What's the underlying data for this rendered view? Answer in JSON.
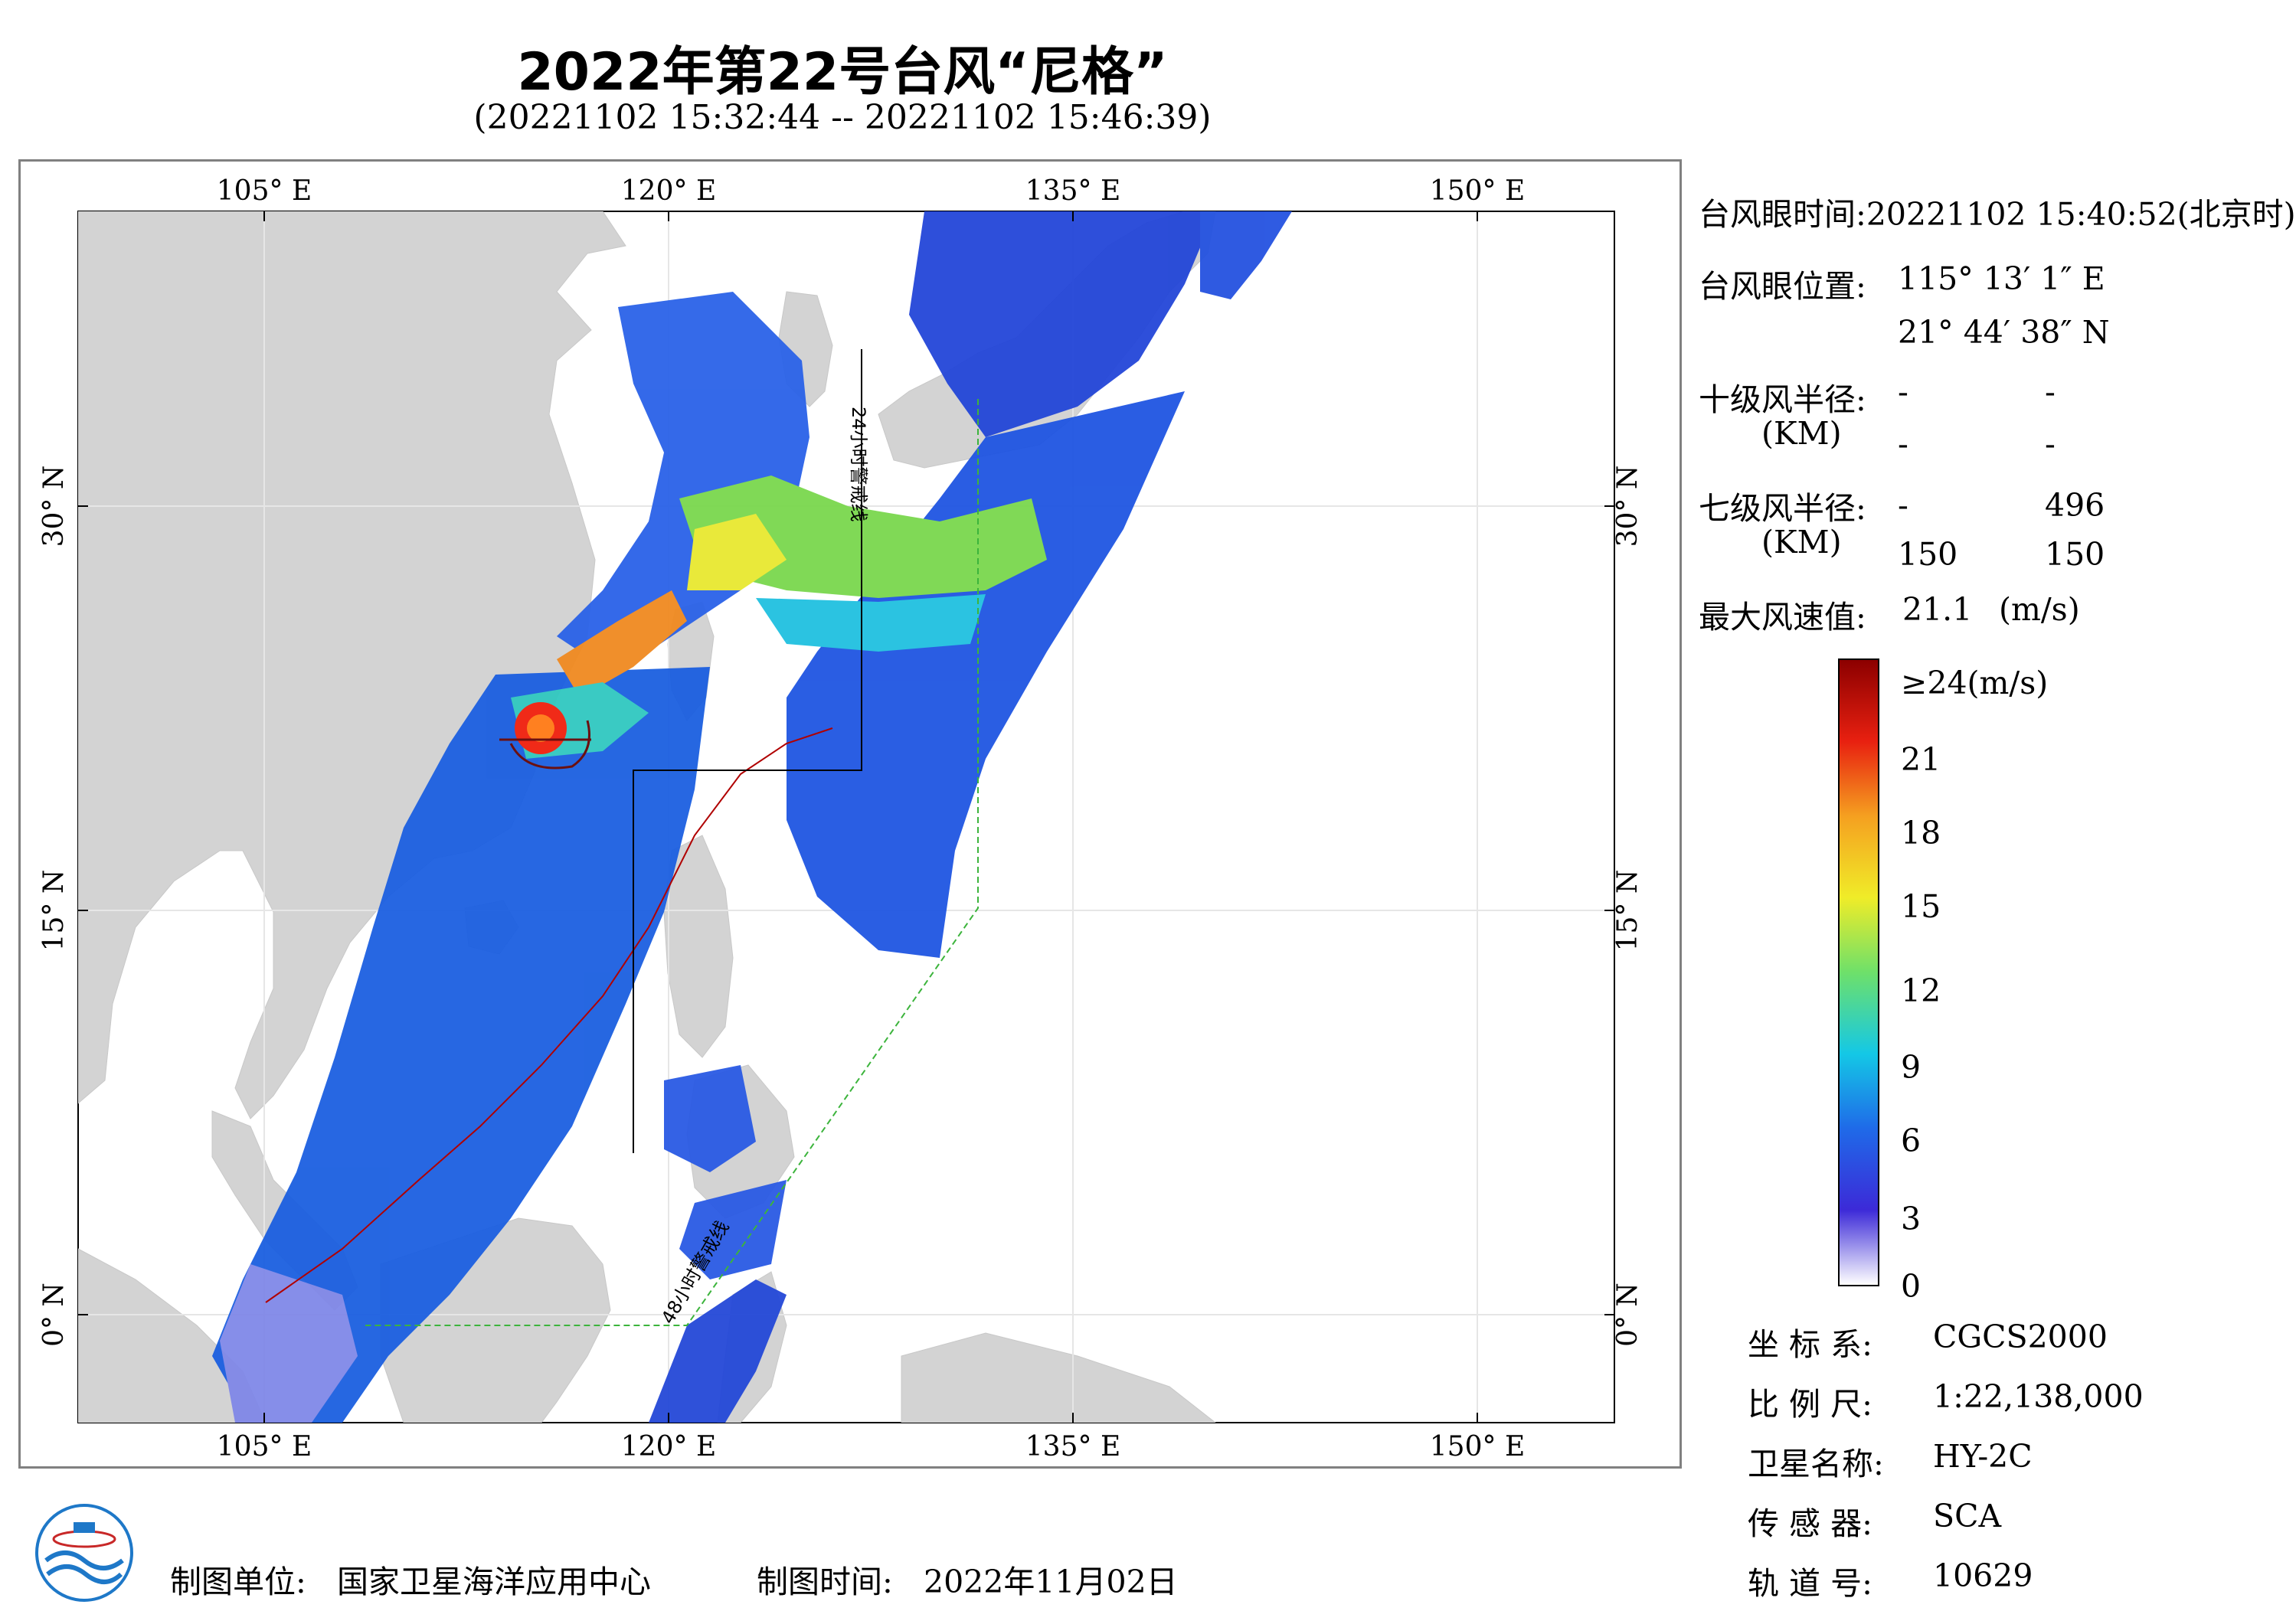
{
  "title": "2022年第22号台风“尼格”",
  "subtitle": "(20221102 15:32:44 -- 20221102 15:46:39)",
  "map": {
    "lon_ticks_top": [
      "105° E",
      "120° E",
      "135° E",
      "150° E"
    ],
    "lon_ticks_bottom": [
      "105° E",
      "120° E",
      "135° E",
      "150° E"
    ],
    "lat_ticks_left": [
      "30° N",
      "15° N",
      "0° N"
    ],
    "lat_ticks_right": [
      "30° N",
      "15° N",
      "0° N"
    ],
    "warning_line_24h": "24小时警戒线",
    "warning_line_48h": "48小时警戒线",
    "colors": {
      "land": "#d3d3d3",
      "ocean": "#ffffff",
      "typhoon_eye": "#e01010",
      "warning_24h": "#000000",
      "warning_48h": "#3cb43c",
      "track": "#b00000"
    }
  },
  "info": {
    "eye_time_label": "台风眼时间:",
    "eye_time_value": "20221102 15:40:52(北京时)",
    "eye_position_label": "台风眼位置:",
    "eye_lon": "115° 13′ 1″ E",
    "eye_lat": "21° 44′ 38″ N",
    "r10_label": "十级风半径:",
    "r10_unit": "(KM)",
    "r10_values": [
      "-",
      "-",
      "-",
      "-"
    ],
    "r7_label": "七级风半径:",
    "r7_unit": "(KM)",
    "r7_values": [
      "-",
      "496",
      "150",
      "150"
    ],
    "max_wind_label": "最大风速值:",
    "max_wind_value": "21.1",
    "max_wind_unit": "(m/s)"
  },
  "colorbar": {
    "top_label": "≥24(m/s)",
    "ticks": [
      "21",
      "18",
      "15",
      "12",
      "9",
      "6",
      "3",
      "0"
    ],
    "stops": [
      "#ffffff",
      "#3c2ad8",
      "#1f6ae8",
      "#14c8e6",
      "#6ee06a",
      "#f0ec28",
      "#f5a020",
      "#e82010",
      "#8c0000"
    ]
  },
  "meta": {
    "coord_label": "坐 标 系:",
    "coord_value": "CGCS2000",
    "scale_label": "比 例 尺:",
    "scale_value": "1:22,138,000",
    "satellite_label": "卫星名称:",
    "satellite_value": "HY-2C",
    "sensor_label": "传 感 器:",
    "sensor_value": "SCA",
    "orbit_label": "轨 道 号:",
    "orbit_value": "10629"
  },
  "footer": {
    "org_label": "制图单位:",
    "org_value": "国家卫星海洋应用中心",
    "date_label": "制图时间:",
    "date_value": "2022年11月02日"
  }
}
